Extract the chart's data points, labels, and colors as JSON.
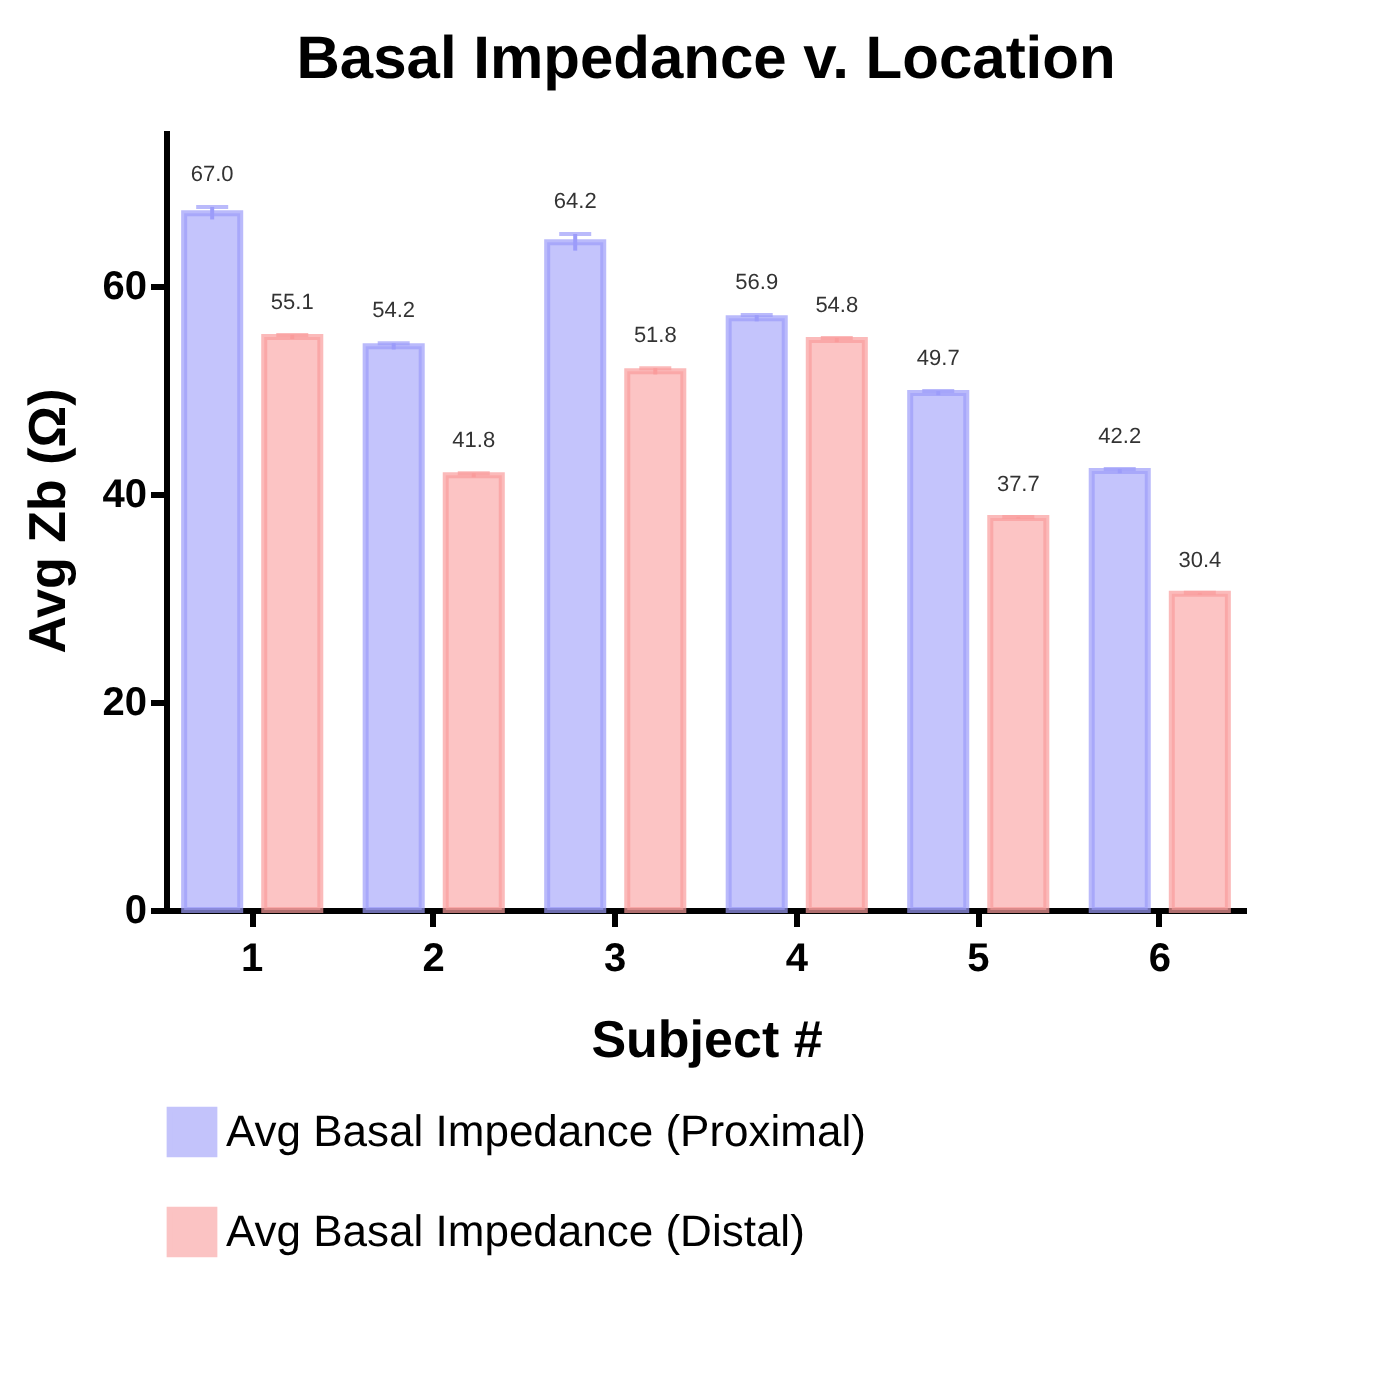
{
  "chart_data": {
    "type": "bar",
    "title": "Basal Impedance v. Location",
    "xlabel": "Subject #",
    "ylabel": "Avg Zb (Ω)",
    "categories": [
      "1",
      "2",
      "3",
      "4",
      "5",
      "6"
    ],
    "series": [
      {
        "name": "Avg Basal Impedance (Proximal)",
        "color": "#9c9cfa",
        "values": [
          67.0,
          54.2,
          64.2,
          56.9,
          49.7,
          42.2
        ],
        "value_labels": [
          "67.0",
          "54.2",
          "64.2",
          "56.9",
          "49.7",
          "42.2"
        ],
        "errors": [
          0.6,
          0.3,
          0.8,
          0.3,
          0.2,
          0.2
        ]
      },
      {
        "name": "Avg Basal Impedance (Distal)",
        "color": "#fa9c9c",
        "values": [
          55.1,
          41.8,
          51.8,
          54.8,
          37.7,
          30.4
        ],
        "value_labels": [
          "55.1",
          "41.8",
          "51.8",
          "54.8",
          "37.7",
          "30.4"
        ],
        "errors": [
          0.2,
          0.2,
          0.3,
          0.2,
          0.1,
          0.1
        ]
      }
    ],
    "ylim": [
      0,
      75
    ],
    "yticks": [
      0,
      20,
      40,
      60
    ],
    "grid": false,
    "legend": "bottom"
  }
}
